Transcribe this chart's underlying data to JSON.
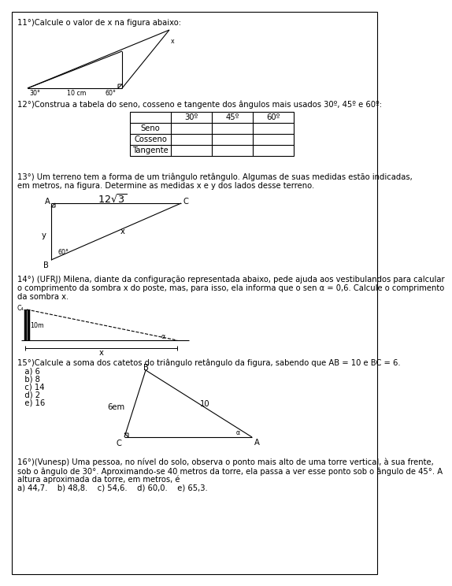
{
  "bg_color": "#ffffff",
  "q11_text": "11°)Calcule o valor de x na figura abaixo:",
  "q12_text": "12°)Construa a tabela do seno, cosseno e tangente dos ângulos mais usados 30º, 45º e 60º:",
  "q13_text1": "13°) Um terreno tem a forma de um triângulo retângulo. Algumas de suas medidas estão indicadas,",
  "q13_text2": "em metros, na figura. Determine as medidas x e y dos lados desse terreno.",
  "q14_text1": "14°) (UFRJ) Milena, diante da configuração representada abaixo, pede ajuda aos vestibulandos para calcular",
  "q14_text2": "o comprimento da sombra x do poste, mas, para isso, ela informa que o sen α = 0,6. Calcule o comprimento",
  "q14_text3": "da sombra x.",
  "q15_text": "15°)Calcule a soma dos catetos do triângulo retângulo da figura, sabendo que AB = 10 e BC = 6.",
  "q15_a": "   a) 6",
  "q15_b": "   b) 8",
  "q15_c": "   c) 14",
  "q15_d": "   d) 2",
  "q15_e": "   e) 16",
  "q16_text1": "16°)(Vunesp) Uma pessoa, no nível do solo, observa o ponto mais alto de uma torre vertical, à sua frente,",
  "q16_text2": "sob o ângulo de 30°. Aproximando-se 40 metros da torre, ela passa a ver esse ponto sob o ângulo de 45°. A",
  "q16_text3": "altura aproximada da torre, em metros, é",
  "q16_opts": "a) 44,7.    b) 48,8.    c) 54,6.    d) 60,0.    e) 65,3.",
  "table_cols": [
    "30º",
    "45º",
    "60º"
  ],
  "table_rows": [
    "Seno",
    "Cosseno",
    "Tangente"
  ],
  "font_size": 7.2
}
